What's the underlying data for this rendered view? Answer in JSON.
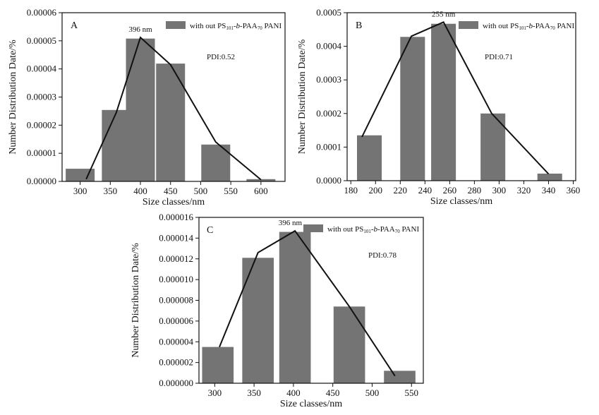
{
  "chart_data": [
    {
      "type": "bar",
      "panel": "A",
      "xlabel": "Size classes/nm",
      "ylabel": "Number Distribution Date/%",
      "legend": {
        "prefix": "with out PS",
        "s1": "101",
        "mid": "-b-PAA",
        "s2": "70",
        "suffix": " PANI"
      },
      "pdi": "PDI:0.52",
      "peak_label": "396 nm",
      "peak_x": 400,
      "xlim": [
        270,
        640
      ],
      "ylim": [
        0,
        6e-05
      ],
      "xticks": [
        300,
        350,
        400,
        450,
        500,
        550,
        600
      ],
      "xtick_labels": [
        "300",
        "350",
        "400",
        "450",
        "500",
        "550",
        "600"
      ],
      "yticks": [
        0,
        1e-05,
        2e-05,
        3e-05,
        4e-05,
        5e-05,
        6e-05
      ],
      "ytick_labels": [
        "0.00000",
        "0.00001",
        "0.00002",
        "0.00003",
        "0.00004",
        "0.00005",
        "0.00006"
      ],
      "bar_width": 48,
      "bars": [
        {
          "x": 300,
          "y": 4.5e-06
        },
        {
          "x": 360,
          "y": 2.54e-05
        },
        {
          "x": 400,
          "y": 5.08e-05
        },
        {
          "x": 450,
          "y": 4.19e-05
        },
        {
          "x": 525,
          "y": 1.31e-05
        },
        {
          "x": 600,
          "y": 8e-07
        }
      ],
      "line": [
        {
          "x": 310,
          "y": 8e-07
        },
        {
          "x": 360,
          "y": 2.45e-05
        },
        {
          "x": 400,
          "y": 5.12e-05
        },
        {
          "x": 450,
          "y": 4.15e-05
        },
        {
          "x": 525,
          "y": 1.4e-05
        },
        {
          "x": 600,
          "y": 6e-07
        }
      ]
    },
    {
      "type": "bar",
      "panel": "B",
      "xlabel": "Size classes/nm",
      "ylabel": "Number Distribution Date/%",
      "legend": {
        "prefix": "with out PS",
        "s1": "101",
        "mid": "-b-PAA",
        "s2": "70",
        "suffix": " PANI"
      },
      "pdi": "PDI:0.71",
      "peak_label": "255 nm",
      "peak_x": 255,
      "xlim": [
        177,
        362
      ],
      "ylim": [
        0,
        0.0005
      ],
      "xticks": [
        180,
        200,
        220,
        240,
        260,
        280,
        300,
        320,
        340,
        360
      ],
      "xtick_labels": [
        "180",
        "200",
        "220",
        "240",
        "260",
        "280",
        "300",
        "320",
        "340",
        "360"
      ],
      "yticks": [
        0,
        0.0001,
        0.0002,
        0.0003,
        0.0004,
        0.0005
      ],
      "ytick_labels": [
        "0.0000",
        "0.0001",
        "0.0002",
        "0.0003",
        "0.0004",
        "0.0005"
      ],
      "bar_width": 20,
      "bars": [
        {
          "x": 195,
          "y": 0.000135
        },
        {
          "x": 230,
          "y": 0.000428
        },
        {
          "x": 255,
          "y": 0.000467
        },
        {
          "x": 295,
          "y": 0.0002
        },
        {
          "x": 341,
          "y": 2.1e-05
        }
      ],
      "line": [
        {
          "x": 189,
          "y": 0.00013
        },
        {
          "x": 229,
          "y": 0.00043
        },
        {
          "x": 255,
          "y": 0.000472
        },
        {
          "x": 294,
          "y": 0.0002
        },
        {
          "x": 340,
          "y": 2e-05
        }
      ]
    },
    {
      "type": "bar",
      "panel": "C",
      "xlabel": "Size classes/nm",
      "ylabel": "Number Distribution Date/%",
      "legend": {
        "prefix": "with out PS",
        "s1": "101",
        "mid": "-b-PAA",
        "s2": "70",
        "suffix": " PANI"
      },
      "pdi": "PDI:0.78",
      "peak_label": "396 nm",
      "peak_x": 396,
      "xlim": [
        280,
        565
      ],
      "ylim": [
        0,
        1.6e-05
      ],
      "xticks": [
        300,
        350,
        400,
        450,
        500,
        550
      ],
      "xtick_labels": [
        "300",
        "350",
        "400",
        "450",
        "500",
        "550"
      ],
      "yticks": [
        0,
        2e-06,
        4e-06,
        6e-06,
        8e-06,
        1e-05,
        1.2e-05,
        1.4e-05,
        1.6e-05
      ],
      "ytick_labels": [
        "0.000000",
        "0.000002",
        "0.000004",
        "0.000006",
        "0.000008",
        "0.000010",
        "0.000012",
        "0.000014",
        "0.000016"
      ],
      "bar_width": 40,
      "bars": [
        {
          "x": 304,
          "y": 3.5e-06
        },
        {
          "x": 355,
          "y": 1.21e-05
        },
        {
          "x": 402,
          "y": 1.46e-05
        },
        {
          "x": 471,
          "y": 7.4e-06
        },
        {
          "x": 535,
          "y": 1.2e-06
        }
      ],
      "line": [
        {
          "x": 306,
          "y": 3.5e-06
        },
        {
          "x": 355,
          "y": 1.26e-05
        },
        {
          "x": 402,
          "y": 1.47e-05
        },
        {
          "x": 471,
          "y": 7.4e-06
        },
        {
          "x": 529,
          "y": 7e-07
        }
      ]
    }
  ]
}
